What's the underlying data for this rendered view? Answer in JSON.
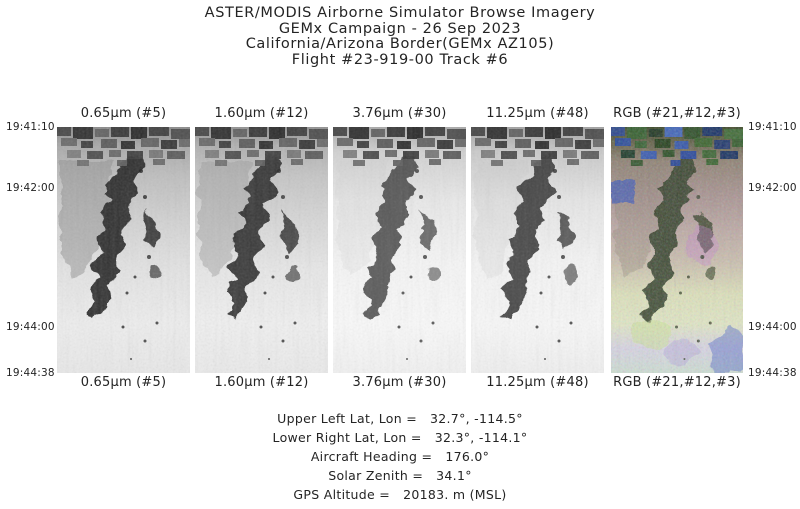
{
  "page": {
    "title_lines": [
      "ASTER/MODIS Airborne Simulator Browse Imagery",
      "GEMx Campaign - 26 Sep 2023",
      "California/Arizona Border(GEMx AZ105)",
      "Flight #23-919-00 Track #6"
    ]
  },
  "strips": [
    {
      "label": "0.65µm (#5)",
      "kind": "grayscale band image"
    },
    {
      "label": "1.60µm (#12)",
      "kind": "grayscale band image"
    },
    {
      "label": "3.76µm (#30)",
      "kind": "grayscale band image"
    },
    {
      "label": "11.25µm (#48)",
      "kind": "grayscale band image"
    },
    {
      "label": "RGB (#21,#12,#3)",
      "kind": "color composite image"
    }
  ],
  "timestamps": [
    "19:41:10",
    "19:42:00",
    "19:44:00",
    "19:44:38"
  ],
  "metadata": [
    {
      "label": "Upper Left Lat, Lon =",
      "value": "32.7°, -114.5°"
    },
    {
      "label": "Lower Right Lat, Lon =",
      "value": "32.3°, -114.1°"
    },
    {
      "label": "Aircraft Heading =",
      "value": "176.0°"
    },
    {
      "label": "Solar Zenith =",
      "value": "34.1°"
    },
    {
      "label": "GPS Altitude =",
      "value": "20183. m (MSL)"
    }
  ],
  "colors": {
    "background": "#ffffff",
    "text": "#242424"
  }
}
